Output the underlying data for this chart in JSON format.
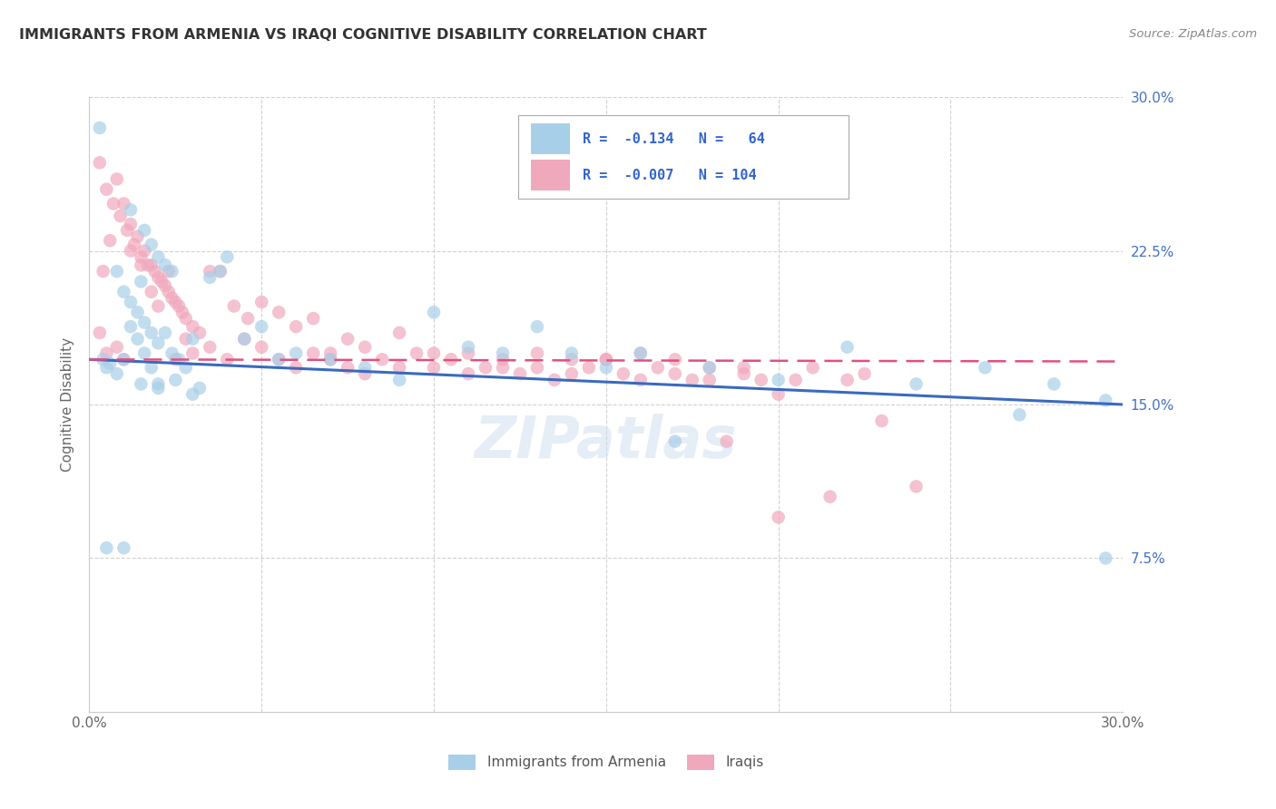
{
  "title": "IMMIGRANTS FROM ARMENIA VS IRAQI COGNITIVE DISABILITY CORRELATION CHART",
  "source": "Source: ZipAtlas.com",
  "ylabel": "Cognitive Disability",
  "x_min": 0.0,
  "x_max": 0.3,
  "y_min": 0.0,
  "y_max": 0.3,
  "color_armenia": "#a8cfe8",
  "color_iraq": "#f0a8bc",
  "color_line_armenia": "#3a6abf",
  "color_line_iraq": "#e05080",
  "watermark": "ZIPatlas",
  "legend_label1": "Immigrants from Armenia",
  "legend_label2": "Iraqis",
  "legend_r1_text": "R =  -0.134   N =   64",
  "legend_r2_text": "R =  -0.007   N = 104",
  "line_armenia_x0": 0.0,
  "line_armenia_y0": 0.172,
  "line_armenia_x1": 0.3,
  "line_armenia_y1": 0.15,
  "line_iraq_x0": 0.0,
  "line_iraq_y0": 0.172,
  "line_iraq_x1": 0.3,
  "line_iraq_y1": 0.171,
  "armenia_x": [
    0.003,
    0.012,
    0.016,
    0.018,
    0.02,
    0.022,
    0.024,
    0.008,
    0.01,
    0.012,
    0.014,
    0.015,
    0.016,
    0.018,
    0.02,
    0.022,
    0.024,
    0.026,
    0.028,
    0.03,
    0.035,
    0.04,
    0.05,
    0.06,
    0.07,
    0.08,
    0.1,
    0.12,
    0.14,
    0.16,
    0.18,
    0.2,
    0.22,
    0.24,
    0.26,
    0.28,
    0.295,
    0.15,
    0.17,
    0.13,
    0.11,
    0.09,
    0.055,
    0.045,
    0.038,
    0.032,
    0.025,
    0.02,
    0.018,
    0.016,
    0.014,
    0.012,
    0.01,
    0.008,
    0.006,
    0.005,
    0.004,
    0.015,
    0.02,
    0.03,
    0.01,
    0.005,
    0.295,
    0.27
  ],
  "armenia_y": [
    0.285,
    0.245,
    0.235,
    0.228,
    0.222,
    0.218,
    0.215,
    0.215,
    0.205,
    0.2,
    0.195,
    0.21,
    0.19,
    0.185,
    0.18,
    0.185,
    0.175,
    0.172,
    0.168,
    0.182,
    0.212,
    0.222,
    0.188,
    0.175,
    0.172,
    0.168,
    0.195,
    0.175,
    0.175,
    0.175,
    0.168,
    0.162,
    0.178,
    0.16,
    0.168,
    0.16,
    0.152,
    0.168,
    0.132,
    0.188,
    0.178,
    0.162,
    0.172,
    0.182,
    0.215,
    0.158,
    0.162,
    0.16,
    0.168,
    0.175,
    0.182,
    0.188,
    0.172,
    0.165,
    0.17,
    0.168,
    0.172,
    0.16,
    0.158,
    0.155,
    0.08,
    0.08,
    0.075,
    0.145
  ],
  "iraq_x": [
    0.003,
    0.005,
    0.007,
    0.009,
    0.011,
    0.013,
    0.015,
    0.017,
    0.019,
    0.021,
    0.023,
    0.025,
    0.027,
    0.004,
    0.006,
    0.008,
    0.01,
    0.012,
    0.014,
    0.016,
    0.018,
    0.02,
    0.022,
    0.024,
    0.026,
    0.028,
    0.03,
    0.032,
    0.035,
    0.038,
    0.042,
    0.046,
    0.05,
    0.055,
    0.06,
    0.065,
    0.07,
    0.075,
    0.08,
    0.09,
    0.1,
    0.11,
    0.12,
    0.13,
    0.14,
    0.15,
    0.16,
    0.17,
    0.18,
    0.19,
    0.2,
    0.003,
    0.005,
    0.008,
    0.01,
    0.012,
    0.015,
    0.018,
    0.02,
    0.023,
    0.025,
    0.028,
    0.03,
    0.035,
    0.04,
    0.045,
    0.05,
    0.055,
    0.06,
    0.065,
    0.07,
    0.075,
    0.08,
    0.085,
    0.09,
    0.095,
    0.1,
    0.105,
    0.11,
    0.115,
    0.12,
    0.125,
    0.13,
    0.135,
    0.14,
    0.145,
    0.15,
    0.155,
    0.16,
    0.165,
    0.17,
    0.175,
    0.18,
    0.185,
    0.19,
    0.195,
    0.2,
    0.205,
    0.21,
    0.215,
    0.22,
    0.225,
    0.23,
    0.24
  ],
  "iraq_y": [
    0.268,
    0.255,
    0.248,
    0.242,
    0.235,
    0.228,
    0.222,
    0.218,
    0.215,
    0.21,
    0.205,
    0.2,
    0.195,
    0.215,
    0.23,
    0.26,
    0.248,
    0.238,
    0.232,
    0.225,
    0.218,
    0.212,
    0.208,
    0.202,
    0.198,
    0.192,
    0.188,
    0.185,
    0.215,
    0.215,
    0.198,
    0.192,
    0.2,
    0.195,
    0.188,
    0.192,
    0.175,
    0.182,
    0.178,
    0.185,
    0.175,
    0.175,
    0.168,
    0.175,
    0.172,
    0.172,
    0.175,
    0.172,
    0.162,
    0.168,
    0.155,
    0.185,
    0.175,
    0.178,
    0.172,
    0.225,
    0.218,
    0.205,
    0.198,
    0.215,
    0.172,
    0.182,
    0.175,
    0.178,
    0.172,
    0.182,
    0.178,
    0.172,
    0.168,
    0.175,
    0.172,
    0.168,
    0.165,
    0.172,
    0.168,
    0.175,
    0.168,
    0.172,
    0.165,
    0.168,
    0.172,
    0.165,
    0.168,
    0.162,
    0.165,
    0.168,
    0.172,
    0.165,
    0.162,
    0.168,
    0.165,
    0.162,
    0.168,
    0.132,
    0.165,
    0.162,
    0.095,
    0.162,
    0.168,
    0.105,
    0.162,
    0.165,
    0.142,
    0.11
  ]
}
